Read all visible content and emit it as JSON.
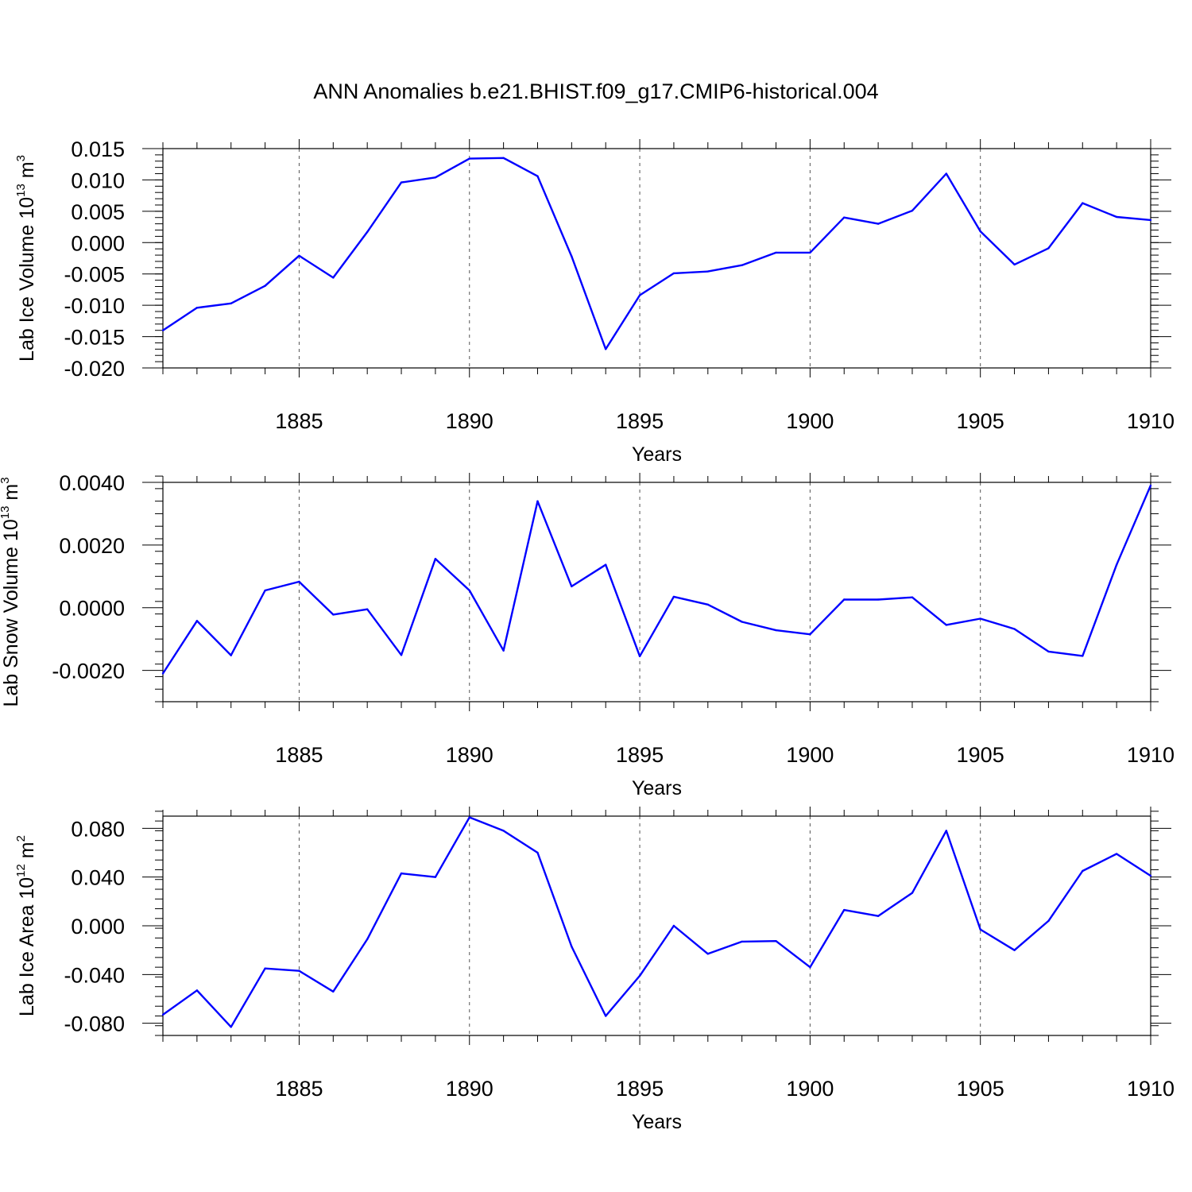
{
  "figure_title": "ANN Anomalies b.e21.BHIST.f09_g17.CMIP6-historical.004",
  "line_color": "#0000ff",
  "chart_data": [
    {
      "type": "line",
      "ylabel": "Lab Ice Volume 10",
      "ylabel_exp": "13",
      "ylabel_unit": " m",
      "ylabel_unit_exp": "3",
      "xlabel": "Years",
      "xlim": [
        1881,
        1910
      ],
      "ylim": [
        -0.02,
        0.015
      ],
      "yticks": [
        0.015,
        0.01,
        0.005,
        0.0,
        -0.005,
        -0.01,
        -0.015,
        -0.02
      ],
      "yticklabels": [
        "0.015",
        "0.010",
        "0.005",
        "0.000",
        "-0.005",
        "-0.010",
        "-0.015",
        "-0.020"
      ],
      "xticks": [
        1885,
        1890,
        1895,
        1900,
        1905,
        1910
      ],
      "xticklabels": [
        "1885",
        "1890",
        "1895",
        "1900",
        "1905",
        "1910"
      ],
      "gridlines_x": [
        1885,
        1890,
        1895,
        1900,
        1905
      ],
      "x": [
        1881,
        1882,
        1883,
        1884,
        1885,
        1886,
        1887,
        1888,
        1889,
        1890,
        1891,
        1892,
        1893,
        1894,
        1895,
        1896,
        1897,
        1898,
        1899,
        1900,
        1901,
        1902,
        1903,
        1904,
        1905,
        1906,
        1907,
        1908,
        1909,
        1910
      ],
      "values": [
        -0.014,
        -0.0104,
        -0.0097,
        -0.0069,
        -0.0021,
        -0.0056,
        0.0017,
        0.0096,
        0.0104,
        0.0134,
        0.0135,
        0.0106,
        -0.0022,
        -0.017,
        -0.0084,
        -0.0049,
        -0.0046,
        -0.0036,
        -0.0016,
        -0.0016,
        0.004,
        0.003,
        0.0051,
        0.011,
        0.0018,
        -0.0035,
        -0.0009,
        0.0063,
        0.0041,
        0.0036
      ]
    },
    {
      "type": "line",
      "ylabel": "Lab Snow Volume 10",
      "ylabel_exp": "13",
      "ylabel_unit": " m",
      "ylabel_unit_exp": "3",
      "xlabel": "Years",
      "xlim": [
        1881,
        1910
      ],
      "ylim": [
        -0.003,
        0.004
      ],
      "yticks": [
        0.004,
        0.002,
        0.0,
        -0.002
      ],
      "yticklabels": [
        "0.0040",
        "0.0020",
        "0.0000",
        "-0.0020"
      ],
      "xticks": [
        1885,
        1890,
        1895,
        1900,
        1905,
        1910
      ],
      "xticklabels": [
        "1885",
        "1890",
        "1895",
        "1900",
        "1905",
        "1910"
      ],
      "gridlines_x": [
        1885,
        1890,
        1895,
        1900,
        1905
      ],
      "x": [
        1881,
        1882,
        1883,
        1884,
        1885,
        1886,
        1887,
        1888,
        1889,
        1890,
        1891,
        1892,
        1893,
        1894,
        1895,
        1896,
        1897,
        1898,
        1899,
        1900,
        1901,
        1902,
        1903,
        1904,
        1905,
        1906,
        1907,
        1908,
        1909,
        1910
      ],
      "values": [
        -0.0021,
        -0.00042,
        -0.00152,
        0.00055,
        0.00083,
        -0.00022,
        -5e-05,
        -0.00151,
        0.00156,
        0.00055,
        -0.00137,
        0.0034,
        0.00068,
        0.00137,
        -0.00155,
        0.00035,
        0.0001,
        -0.00045,
        -0.00072,
        -0.00085,
        0.00026,
        0.00026,
        0.00033,
        -0.00055,
        -0.00035,
        -0.00068,
        -0.0014,
        -0.00154,
        0.00137,
        0.0039
      ]
    },
    {
      "type": "line",
      "ylabel": "Lab Ice Area 10",
      "ylabel_exp": "12",
      "ylabel_unit": " m",
      "ylabel_unit_exp": "2",
      "xlabel": "Years",
      "xlim": [
        1881,
        1910
      ],
      "ylim": [
        -0.09,
        0.09
      ],
      "yticks": [
        0.08,
        0.04,
        0.0,
        -0.04,
        -0.08
      ],
      "yticklabels": [
        "0.080",
        "0.040",
        "0.000",
        "-0.040",
        "-0.080"
      ],
      "xticks": [
        1885,
        1890,
        1895,
        1900,
        1905,
        1910
      ],
      "xticklabels": [
        "1885",
        "1890",
        "1895",
        "1900",
        "1905",
        "1910"
      ],
      "gridlines_x": [
        1885,
        1890,
        1895,
        1900,
        1905
      ],
      "x": [
        1881,
        1882,
        1883,
        1884,
        1885,
        1886,
        1887,
        1888,
        1889,
        1890,
        1891,
        1892,
        1893,
        1894,
        1895,
        1896,
        1897,
        1898,
        1899,
        1900,
        1901,
        1902,
        1903,
        1904,
        1905,
        1906,
        1907,
        1908,
        1909,
        1910
      ],
      "values": [
        -0.073,
        -0.053,
        -0.083,
        -0.035,
        -0.037,
        -0.054,
        -0.011,
        0.043,
        0.04,
        0.089,
        0.078,
        0.06,
        -0.017,
        -0.074,
        -0.041,
        0.0,
        -0.023,
        -0.013,
        -0.0125,
        -0.034,
        0.013,
        0.008,
        0.027,
        0.078,
        -0.003,
        -0.02,
        0.004,
        0.045,
        0.059,
        0.041
      ]
    }
  ]
}
